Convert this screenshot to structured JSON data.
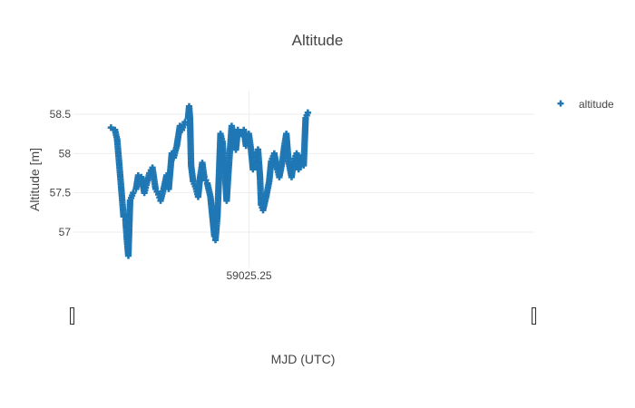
{
  "chart_data": {
    "type": "scatter",
    "title": "Altitude",
    "xlabel": "MJD (UTC)",
    "ylabel": "Altitude [m]",
    "marker": "cross",
    "color": "#1f77b4",
    "grid": true,
    "legend_position": "top-right",
    "range_slider": true,
    "xlim": [
      59025.17,
      59025.38
    ],
    "ylim": [
      56.55,
      58.8
    ],
    "x_ticks": [
      {
        "value": 59025.25,
        "label": "59025.25"
      }
    ],
    "y_ticks": [
      {
        "value": 57,
        "label": "57"
      },
      {
        "value": 57.5,
        "label": "57.5"
      },
      {
        "value": 58,
        "label": "58"
      },
      {
        "value": 58.5,
        "label": "58.5"
      }
    ],
    "series": [
      {
        "name": "altitude",
        "points": [
          [
            59025.1871,
            58.33
          ],
          [
            59025.1889,
            58.3
          ],
          [
            59025.1899,
            58.18
          ],
          [
            59025.1909,
            57.85
          ],
          [
            59025.1918,
            57.55
          ],
          [
            59025.1928,
            57.2
          ],
          [
            59025.1937,
            57.15
          ],
          [
            59025.1945,
            56.85
          ],
          [
            59025.195,
            56.7
          ],
          [
            59025.1958,
            57.4
          ],
          [
            59025.1972,
            57.5
          ],
          [
            59025.1985,
            57.55
          ],
          [
            59025.1995,
            57.72
          ],
          [
            59025.2009,
            57.7
          ],
          [
            59025.2023,
            57.5
          ],
          [
            59025.2032,
            57.6
          ],
          [
            59025.2046,
            57.75
          ],
          [
            59025.206,
            57.82
          ],
          [
            59025.2074,
            57.55
          ],
          [
            59025.2087,
            57.48
          ],
          [
            59025.2097,
            57.4
          ],
          [
            59025.2111,
            57.55
          ],
          [
            59025.2124,
            57.72
          ],
          [
            59025.2134,
            57.55
          ],
          [
            59025.2148,
            58.0
          ],
          [
            59025.2157,
            57.95
          ],
          [
            59025.2171,
            58.1
          ],
          [
            59025.2185,
            58.35
          ],
          [
            59025.2194,
            58.3
          ],
          [
            59025.2208,
            58.4
          ],
          [
            59025.2222,
            58.45
          ],
          [
            59025.2227,
            58.6
          ],
          [
            59025.2231,
            58.45
          ],
          [
            59025.2236,
            57.85
          ],
          [
            59025.2245,
            57.65
          ],
          [
            59025.2259,
            57.55
          ],
          [
            59025.2268,
            57.45
          ],
          [
            59025.2277,
            57.7
          ],
          [
            59025.2287,
            57.88
          ],
          [
            59025.2296,
            57.7
          ],
          [
            59025.231,
            57.62
          ],
          [
            59025.2324,
            57.45
          ],
          [
            59025.2333,
            57.2
          ],
          [
            59025.2342,
            56.95
          ],
          [
            59025.2347,
            56.9
          ],
          [
            59025.2356,
            57.2
          ],
          [
            59025.237,
            58.25
          ],
          [
            59025.2379,
            58.15
          ],
          [
            59025.2389,
            57.8
          ],
          [
            59025.2398,
            57.4
          ],
          [
            59025.2407,
            57.8
          ],
          [
            59025.2421,
            58.35
          ],
          [
            59025.243,
            58.2
          ],
          [
            59025.244,
            58.05
          ],
          [
            59025.2449,
            58.3
          ],
          [
            59025.2463,
            58.25
          ],
          [
            59025.2476,
            58.3
          ],
          [
            59025.2486,
            58.1
          ],
          [
            59025.2499,
            58.25
          ],
          [
            59025.2509,
            58.05
          ],
          [
            59025.2518,
            57.8
          ],
          [
            59025.2532,
            57.95
          ],
          [
            59025.2541,
            58.05
          ],
          [
            59025.255,
            57.7
          ],
          [
            59025.2555,
            57.35
          ],
          [
            59025.2564,
            57.28
          ],
          [
            59025.2578,
            57.45
          ],
          [
            59025.2592,
            57.65
          ],
          [
            59025.2601,
            57.9
          ],
          [
            59025.2615,
            58.0
          ],
          [
            59025.2629,
            57.8
          ],
          [
            59025.2638,
            57.7
          ],
          [
            59025.2652,
            57.9
          ],
          [
            59025.2661,
            58.1
          ],
          [
            59025.267,
            58.25
          ],
          [
            59025.268,
            57.9
          ],
          [
            59025.2694,
            57.7
          ],
          [
            59025.2703,
            57.9
          ],
          [
            59025.2717,
            58.0
          ],
          [
            59025.2726,
            57.8
          ],
          [
            59025.2735,
            57.95
          ],
          [
            59025.2749,
            57.85
          ],
          [
            59025.2758,
            58.45
          ],
          [
            59025.2768,
            58.52
          ]
        ]
      }
    ]
  }
}
